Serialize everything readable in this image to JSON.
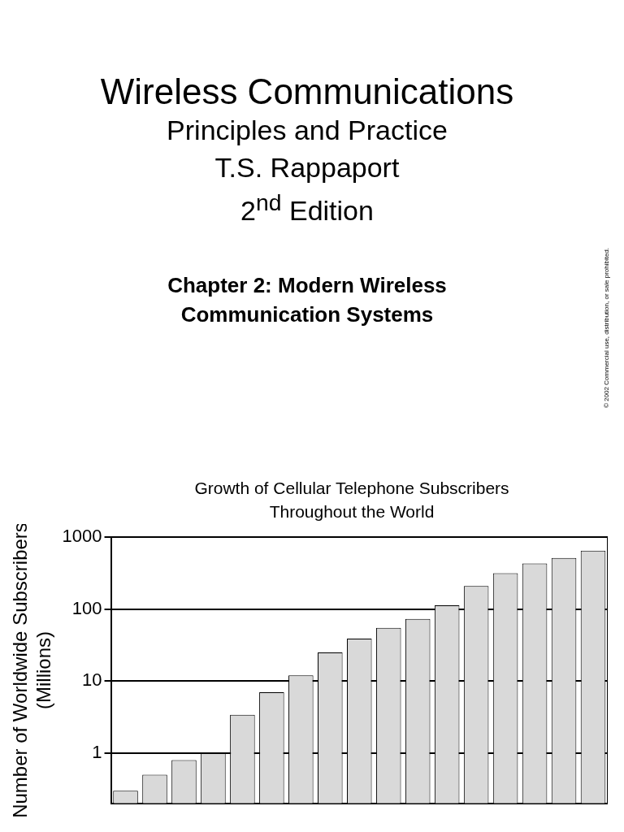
{
  "chart_data": {
    "type": "bar",
    "title": "Growth of Cellular Telephone Subscribers Throughout the World",
    "ylabel": "Number of Worldwide Subscribers (Millions)",
    "annotations": [
      "Wireless Communications",
      "Principles and Practice",
      "T.S. Rappaport",
      "2$^{nd}$ Edition",
      "Chapter 2: Modern Wireless Communication Systems",
      "© 2002 Commercial use, distribution, or sale prohibited."
    ],
    "categories": [
      null,
      null,
      null,
      null,
      null,
      null,
      null,
      null,
      null,
      null,
      null,
      null,
      null,
      null,
      null,
      null,
      null
    ],
    "values": [
      0.3,
      0.5,
      0.8,
      1,
      3.4,
      7,
      12,
      25,
      39,
      55,
      73,
      113,
      210,
      316,
      433,
      515,
      650
    ],
    "color": "#d9d9d9",
    "log": true,
    "ylim": [
      0.2,
      1000
    ],
    "yticks": [
      1,
      10,
      100,
      1000
    ],
    "grid": "y",
    "legend": false
  }
}
